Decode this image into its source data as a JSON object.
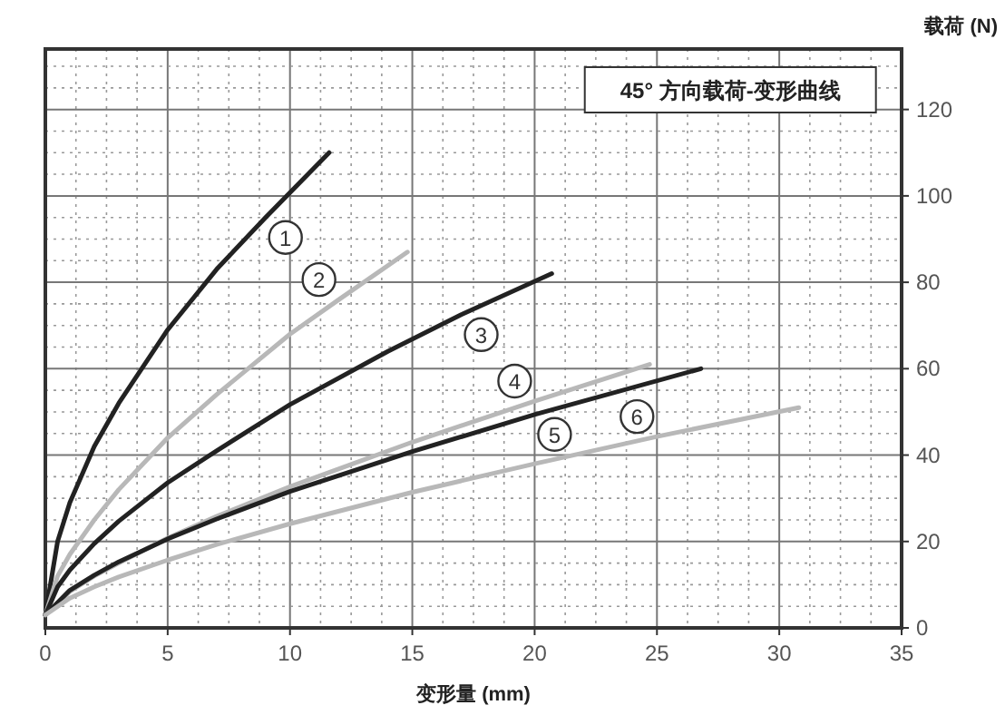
{
  "chart_data": {
    "type": "line",
    "title": "45° 方向载荷-变形曲线",
    "xlabel": "变形量 (mm)",
    "ylabel": "载荷 (N)",
    "xlim": [
      0,
      35
    ],
    "ylim": [
      0,
      134
    ],
    "xticks": [
      0,
      5,
      10,
      15,
      20,
      25,
      30,
      35
    ],
    "yticks": [
      0,
      20,
      40,
      60,
      80,
      100,
      120
    ],
    "grid": true,
    "marker": "none",
    "line_style": "solid",
    "series": [
      {
        "name": "1",
        "color": "#222222",
        "x": [
          0,
          0.5,
          1,
          2,
          3,
          5,
          7,
          9,
          11.6
        ],
        "values": [
          3,
          20,
          29,
          42,
          52,
          69,
          83,
          95,
          110
        ]
      },
      {
        "name": "2",
        "color": "#b8b8b8",
        "x": [
          0,
          0.5,
          1,
          2,
          3,
          5,
          7,
          10,
          12,
          14.8
        ],
        "values": [
          3,
          12,
          17,
          25,
          32,
          44,
          54,
          68,
          76,
          87
        ]
      },
      {
        "name": "3",
        "color": "#222222",
        "x": [
          0,
          0.5,
          1,
          2,
          3,
          5,
          7,
          10,
          14,
          17,
          20.7
        ],
        "values": [
          3,
          9.5,
          13.4,
          19.5,
          24.7,
          33.6,
          41,
          51.7,
          64,
          72.5,
          82
        ]
      },
      {
        "name": "4",
        "color": "#b8b8b8",
        "x": [
          0,
          1,
          2,
          3,
          5,
          7,
          10,
          15,
          20,
          24.7
        ],
        "values": [
          3,
          8.4,
          12,
          15,
          20.8,
          25.8,
          32.7,
          43,
          52.5,
          61
        ]
      },
      {
        "name": "5",
        "color": "#222222",
        "x": [
          0,
          1,
          2,
          3,
          5,
          7,
          10,
          15,
          20,
          26.8
        ],
        "values": [
          3,
          8.7,
          12.2,
          15.3,
          20.6,
          25.2,
          31.6,
          40.8,
          49.4,
          60
        ]
      },
      {
        "name": "6",
        "color": "#b8b8b8",
        "x": [
          0,
          1,
          2,
          3,
          5,
          7,
          10,
          15,
          20,
          25,
          30.8
        ],
        "values": [
          3,
          6.9,
          9.5,
          11.8,
          15.7,
          19.3,
          24.1,
          31.4,
          38,
          44.3,
          51
        ]
      }
    ]
  }
}
